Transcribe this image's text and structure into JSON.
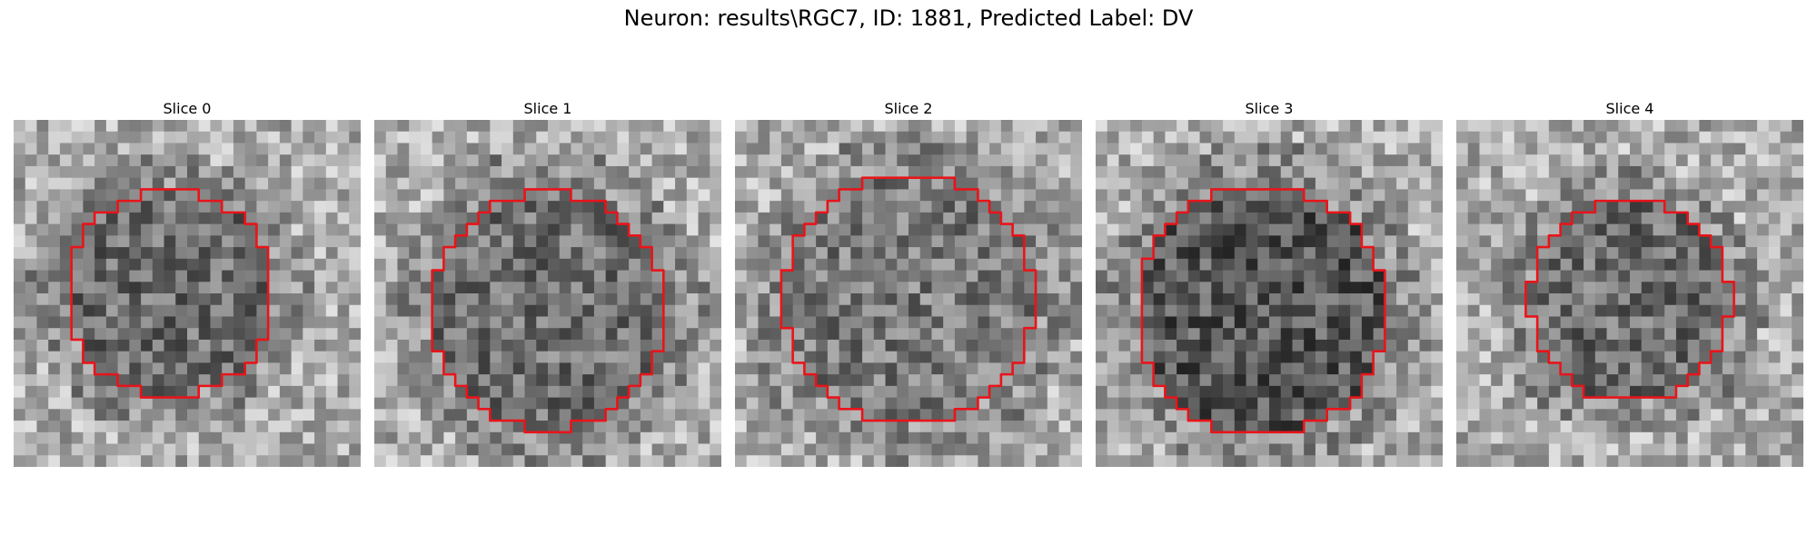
{
  "figure": {
    "title": "Neuron: results\\RGC7, ID: 1881, Predicted Label: DV"
  },
  "slices": [
    {
      "title": "Slice 0",
      "center": [
        0.45,
        0.5
      ],
      "radius": 0.3,
      "darkness": 0.35
    },
    {
      "title": "Slice 1",
      "center": [
        0.5,
        0.55
      ],
      "radius": 0.34,
      "darkness": 0.32
    },
    {
      "title": "Slice 2",
      "center": [
        0.5,
        0.52
      ],
      "radius": 0.36,
      "darkness": 0.25
    },
    {
      "title": "Slice 3",
      "center": [
        0.48,
        0.55
      ],
      "radius": 0.36,
      "darkness": 0.5
    },
    {
      "title": "Slice 4",
      "center": [
        0.5,
        0.52
      ],
      "radius": 0.29,
      "darkness": 0.35
    }
  ],
  "image": {
    "grid": 30,
    "contour_color": "#e8141a"
  }
}
